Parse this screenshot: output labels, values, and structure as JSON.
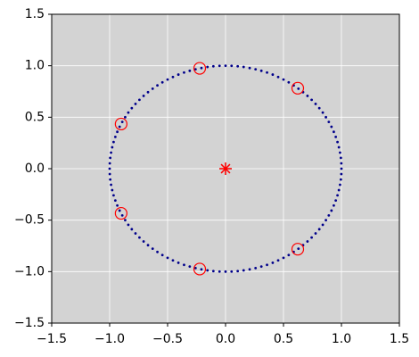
{
  "chart_data": {
    "type": "scatter",
    "xlim": [
      -1.5,
      1.5
    ],
    "ylim": [
      -1.5,
      1.5
    ],
    "xticks": [
      {
        "value": -1.5,
        "label": "−1.5"
      },
      {
        "value": -1.0,
        "label": "−1.0"
      },
      {
        "value": -0.5,
        "label": "−0.5"
      },
      {
        "value": 0,
        "label": "0.0"
      },
      0.5,
      {
        "value": 1.0,
        "label": "1.0"
      },
      1.5
    ],
    "yticks": [
      {
        "value": -1.5,
        "label": "−1.5"
      },
      {
        "value": -1.0,
        "label": "−1.0"
      },
      {
        "value": -0.5,
        "label": "−0.5"
      },
      {
        "value": 0,
        "label": "0.0"
      },
      0.5,
      {
        "value": 1.0,
        "label": "1.0"
      },
      1.5
    ],
    "grid": true,
    "background": "#d3d3d3",
    "series": [
      {
        "color": "#00008b",
        "marker": "dot",
        "x": [
          1,
          0.999,
          0.995,
          0.988,
          0.978,
          0.966,
          0.951,
          0.934,
          0.914,
          0.891,
          0.866,
          0.839,
          0.809,
          0.777,
          0.743,
          0.707,
          0.669,
          0.629,
          0.588,
          0.545,
          0.5,
          0.454,
          0.407,
          0.358,
          0.309,
          0.259,
          0.208,
          0.156,
          0.105,
          0.052,
          0,
          -0.052,
          -0.105,
          -0.156,
          -0.208,
          -0.259,
          -0.309,
          -0.358,
          -0.407,
          -0.454,
          -0.5,
          -0.545,
          -0.588,
          -0.629,
          -0.669,
          -0.707,
          -0.743,
          -0.777,
          -0.809,
          -0.839,
          -0.866,
          -0.891,
          -0.914,
          -0.934,
          -0.951,
          -0.966,
          -0.978,
          -0.988,
          -0.995,
          -0.999,
          -1,
          -0.999,
          -0.995,
          -0.988,
          -0.978,
          -0.966,
          -0.951,
          -0.934,
          -0.914,
          -0.891,
          -0.866,
          -0.839,
          -0.809,
          -0.777,
          -0.743,
          -0.707,
          -0.669,
          -0.629,
          -0.588,
          -0.545,
          -0.5,
          -0.454,
          -0.407,
          -0.358,
          -0.309,
          -0.259,
          -0.208,
          -0.156,
          -0.105,
          -0.052,
          0,
          0.052,
          0.105,
          0.156,
          0.208,
          0.259,
          0.309,
          0.358,
          0.407,
          0.454,
          0.5,
          0.545,
          0.588,
          0.629,
          0.669,
          0.707,
          0.743,
          0.777,
          0.809,
          0.839,
          0.866,
          0.891,
          0.914,
          0.934,
          0.951,
          0.966,
          0.978,
          0.988,
          0.995,
          0.999
        ],
        "y": [
          0,
          0.052,
          0.105,
          0.156,
          0.208,
          0.259,
          0.309,
          0.358,
          0.407,
          0.454,
          0.5,
          0.545,
          0.588,
          0.629,
          0.669,
          0.707,
          0.743,
          0.777,
          0.809,
          0.839,
          0.866,
          0.891,
          0.914,
          0.934,
          0.951,
          0.966,
          0.978,
          0.988,
          0.995,
          0.999,
          1,
          0.999,
          0.995,
          0.988,
          0.978,
          0.966,
          0.951,
          0.934,
          0.914,
          0.891,
          0.866,
          0.839,
          0.809,
          0.777,
          0.743,
          0.707,
          0.669,
          0.629,
          0.588,
          0.545,
          0.5,
          0.454,
          0.407,
          0.358,
          0.309,
          0.259,
          0.208,
          0.156,
          0.105,
          0.052,
          0,
          -0.052,
          -0.105,
          -0.156,
          -0.208,
          -0.259,
          -0.309,
          -0.358,
          -0.407,
          -0.454,
          -0.5,
          -0.545,
          -0.588,
          -0.629,
          -0.669,
          -0.707,
          -0.743,
          -0.777,
          -0.809,
          -0.839,
          -0.866,
          -0.891,
          -0.914,
          -0.934,
          -0.951,
          -0.966,
          -0.978,
          -0.988,
          -0.995,
          -0.999,
          -1,
          -0.999,
          -0.995,
          -0.988,
          -0.978,
          -0.966,
          -0.951,
          -0.934,
          -0.914,
          -0.891,
          -0.866,
          -0.839,
          -0.809,
          -0.777,
          -0.743,
          -0.707,
          -0.669,
          -0.629,
          -0.588,
          -0.545,
          -0.5,
          -0.454,
          -0.407,
          -0.358,
          -0.309,
          -0.259,
          -0.208,
          -0.156,
          -0.105,
          -0.052
        ]
      },
      {
        "color": "#ff0000",
        "marker": "circle",
        "x": [
          0.623,
          -0.223,
          -0.901,
          -0.901,
          -0.223,
          0.623
        ],
        "y": [
          0.782,
          0.975,
          0.434,
          -0.434,
          -0.975,
          -0.782
        ]
      },
      {
        "color": "#ff0000",
        "marker": "star",
        "x": [
          0
        ],
        "y": [
          0
        ]
      }
    ]
  }
}
